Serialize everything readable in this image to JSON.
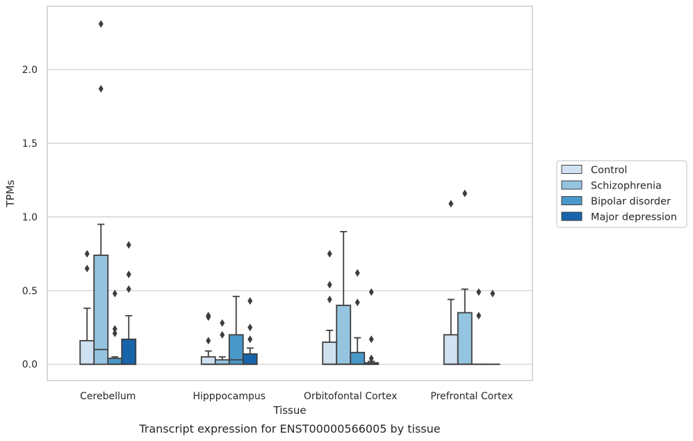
{
  "chart_data": {
    "type": "box",
    "caption": "Transcript expression for ENST00000566005 by tissue",
    "xlabel": "Tissue",
    "ylabel": "TPMs",
    "ylim": [
      -0.11,
      2.43
    ],
    "yticks": [
      0.0,
      0.5,
      1.0,
      1.5,
      2.0
    ],
    "ytick_labels": [
      "0.0",
      "0.5",
      "1.0",
      "1.5",
      "2.0"
    ],
    "grid": "horizontal",
    "legend_position": "right",
    "categories": [
      "Cerebellum",
      "Hipppocampus",
      "Orbitofontal Cortex",
      "Prefrontal Cortex"
    ],
    "series": [
      {
        "name": "Control",
        "color": "#d0e1f2",
        "boxes": [
          {
            "q1": 0.0,
            "median": 0.0,
            "q3": 0.16,
            "whisker_low": 0.0,
            "whisker_high": 0.38,
            "outliers": [
              0.65,
              0.75
            ]
          },
          {
            "q1": 0.0,
            "median": 0.0,
            "q3": 0.05,
            "whisker_low": 0.0,
            "whisker_high": 0.09,
            "outliers": [
              0.16,
              0.32,
              0.33
            ]
          },
          {
            "q1": 0.0,
            "median": 0.0,
            "q3": 0.15,
            "whisker_low": 0.0,
            "whisker_high": 0.23,
            "outliers": [
              0.44,
              0.54,
              0.75
            ]
          },
          {
            "q1": 0.0,
            "median": 0.0,
            "q3": 0.2,
            "whisker_low": 0.0,
            "whisker_high": 0.44,
            "outliers": [
              1.09
            ]
          }
        ]
      },
      {
        "name": "Schizophrenia",
        "color": "#94c4df",
        "boxes": [
          {
            "q1": 0.0,
            "median": 0.1,
            "q3": 0.74,
            "whisker_low": 0.0,
            "whisker_high": 0.95,
            "outliers": [
              1.87,
              2.31
            ]
          },
          {
            "q1": 0.0,
            "median": 0.0,
            "q3": 0.03,
            "whisker_low": 0.0,
            "whisker_high": 0.05,
            "outliers": [
              0.2,
              0.28
            ]
          },
          {
            "q1": 0.0,
            "median": 0.0,
            "q3": 0.4,
            "whisker_low": 0.0,
            "whisker_high": 0.9,
            "outliers": []
          },
          {
            "q1": 0.0,
            "median": 0.0,
            "q3": 0.35,
            "whisker_low": 0.0,
            "whisker_high": 0.51,
            "outliers": [
              1.16
            ]
          }
        ]
      },
      {
        "name": "Bipolar disorder",
        "color": "#4a98c9",
        "boxes": [
          {
            "q1": 0.0,
            "median": 0.0,
            "q3": 0.04,
            "whisker_low": 0.0,
            "whisker_high": 0.05,
            "outliers": [
              0.21,
              0.24,
              0.48
            ]
          },
          {
            "q1": 0.0,
            "median": 0.03,
            "q3": 0.2,
            "whisker_low": 0.0,
            "whisker_high": 0.46,
            "outliers": []
          },
          {
            "q1": 0.0,
            "median": 0.0,
            "q3": 0.08,
            "whisker_low": 0.0,
            "whisker_high": 0.18,
            "outliers": [
              0.42,
              0.62
            ]
          },
          {
            "q1": 0.0,
            "median": 0.0,
            "q3": 0.0,
            "whisker_low": 0.0,
            "whisker_high": 0.0,
            "outliers": [
              0.33,
              0.49
            ]
          }
        ]
      },
      {
        "name": "Major depression",
        "color": "#1764ab",
        "boxes": [
          {
            "q1": 0.0,
            "median": 0.0,
            "q3": 0.17,
            "whisker_low": 0.0,
            "whisker_high": 0.33,
            "outliers": [
              0.51,
              0.61,
              0.81
            ]
          },
          {
            "q1": 0.0,
            "median": 0.0,
            "q3": 0.07,
            "whisker_low": 0.0,
            "whisker_high": 0.11,
            "outliers": [
              0.17,
              0.25,
              0.43
            ]
          },
          {
            "q1": 0.0,
            "median": 0.0,
            "q3": 0.01,
            "whisker_low": 0.0,
            "whisker_high": 0.02,
            "outliers": [
              0.04,
              0.17,
              0.49
            ]
          },
          {
            "q1": 0.0,
            "median": 0.0,
            "q3": 0.0,
            "whisker_low": 0.0,
            "whisker_high": 0.0,
            "outliers": [
              0.48
            ]
          }
        ]
      }
    ]
  }
}
